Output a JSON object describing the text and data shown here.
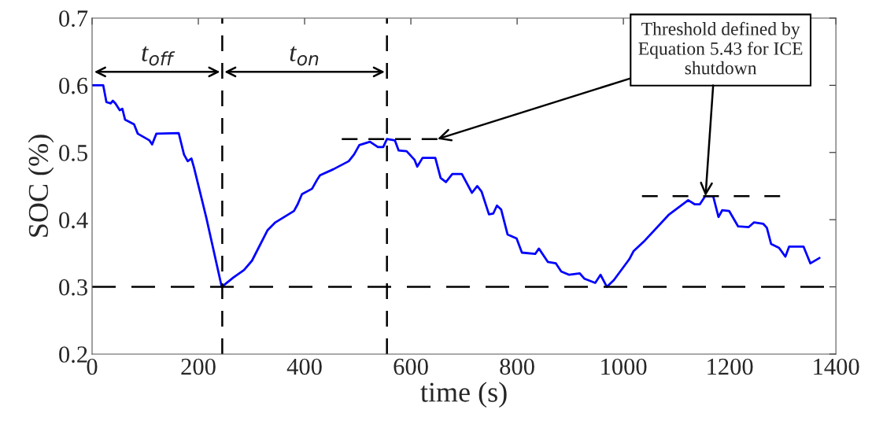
{
  "chart_data": {
    "type": "line",
    "xlabel": "time (s)",
    "ylabel": "SOC (%)",
    "xlim": [
      0,
      1400
    ],
    "ylim": [
      0.2,
      0.7
    ],
    "xticks": [
      0,
      200,
      400,
      600,
      800,
      1000,
      1200,
      1400
    ],
    "yticks": [
      0.2,
      0.3,
      0.4,
      0.5,
      0.6,
      0.7
    ],
    "grid": false,
    "legend": false,
    "marker": "none",
    "series": [
      {
        "color": "#0000ff",
        "line_style": "solid",
        "x": [
          0,
          21,
          27,
          35,
          39,
          44,
          52,
          57,
          62,
          79,
          86,
          108,
          113,
          121,
          163,
          173,
          180,
          187,
          192,
          215,
          244,
          266,
          286,
          301,
          330,
          345,
          380,
          387,
          395,
          414,
          424,
          429,
          454,
          483,
          493,
          503,
          523,
          538,
          548,
          555,
          570,
          577,
          592,
          607,
          612,
          622,
          646,
          656,
          666,
          678,
          696,
          715,
          725,
          733,
          747,
          755,
          762,
          770,
          782,
          799,
          809,
          834,
          841,
          858,
          873,
          883,
          898,
          918,
          927,
          947,
          957,
          969,
          982,
          1011,
          1019,
          1038,
          1085,
          1122,
          1134,
          1144,
          1154,
          1169,
          1179,
          1186,
          1199,
          1216,
          1236,
          1246,
          1263,
          1270,
          1278,
          1293,
          1305,
          1312,
          1339,
          1352,
          1369
        ],
        "values": [
          0.6,
          0.6,
          0.575,
          0.573,
          0.577,
          0.573,
          0.563,
          0.565,
          0.549,
          0.542,
          0.528,
          0.518,
          0.512,
          0.528,
          0.529,
          0.497,
          0.487,
          0.491,
          0.477,
          0.403,
          0.3,
          0.314,
          0.325,
          0.339,
          0.384,
          0.396,
          0.413,
          0.423,
          0.438,
          0.446,
          0.46,
          0.466,
          0.475,
          0.487,
          0.497,
          0.511,
          0.516,
          0.508,
          0.508,
          0.52,
          0.518,
          0.503,
          0.502,
          0.489,
          0.479,
          0.492,
          0.492,
          0.462,
          0.456,
          0.468,
          0.468,
          0.44,
          0.45,
          0.442,
          0.408,
          0.409,
          0.421,
          0.415,
          0.378,
          0.372,
          0.351,
          0.349,
          0.357,
          0.337,
          0.335,
          0.323,
          0.318,
          0.32,
          0.312,
          0.306,
          0.318,
          0.3,
          0.31,
          0.341,
          0.353,
          0.367,
          0.407,
          0.429,
          0.423,
          0.423,
          0.435,
          0.435,
          0.404,
          0.414,
          0.413,
          0.39,
          0.389,
          0.396,
          0.394,
          0.388,
          0.364,
          0.358,
          0.345,
          0.36,
          0.36,
          0.335,
          0.343
        ]
      },
      {
        "color": "#000000",
        "line_style": "dashed",
        "x": [
          470,
          650
        ],
        "values": [
          0.52,
          0.52
        ]
      },
      {
        "color": "#000000",
        "line_style": "dashed",
        "x": [
          1035,
          1295
        ],
        "values": [
          0.435,
          0.435
        ]
      }
    ],
    "ref_lines": [
      {
        "axis": "y",
        "value": 0.3,
        "color": "#000000",
        "line_style": "dashed"
      },
      {
        "axis": "x",
        "value": 245,
        "color": "#000000",
        "line_style": "dashed"
      },
      {
        "axis": "x",
        "value": 555,
        "color": "#000000",
        "line_style": "dashed"
      }
    ],
    "annotations": [
      "t$_{off}$",
      "t$_{on}$",
      {
        "text": "Threshold defined by\nEquation 5.43 for ICE\nshutdown",
        "x": 650,
        "y": 0.52
      }
    ]
  }
}
